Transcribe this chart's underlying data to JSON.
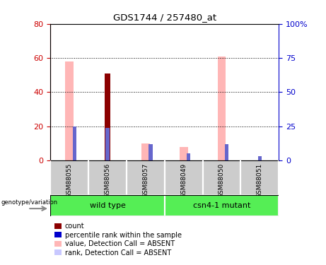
{
  "title": "GDS1744 / 257480_at",
  "samples": [
    "GSM88055",
    "GSM88056",
    "GSM88057",
    "GSM88049",
    "GSM88050",
    "GSM88051"
  ],
  "pink_values": [
    58,
    0,
    10,
    8,
    61,
    0
  ],
  "dark_red_values": [
    0,
    51,
    0,
    0,
    0,
    0
  ],
  "blue_rank_values": [
    25,
    24,
    12,
    5,
    12,
    3
  ],
  "pink_rank_values": [
    0,
    0,
    12,
    8,
    12,
    0
  ],
  "ylim_left": [
    0,
    80
  ],
  "ylim_right": [
    0,
    100
  ],
  "yticks_left": [
    0,
    20,
    40,
    60,
    80
  ],
  "yticks_right": [
    0,
    25,
    50,
    75,
    100
  ],
  "left_axis_color": "#cc0000",
  "right_axis_color": "#0000cc",
  "legend_items": [
    {
      "color": "#8B0000",
      "label": "count"
    },
    {
      "color": "#0000cc",
      "label": "percentile rank within the sample"
    },
    {
      "color": "#ffb6b6",
      "label": "value, Detection Call = ABSENT"
    },
    {
      "color": "#c8c8ff",
      "label": "rank, Detection Call = ABSENT"
    }
  ],
  "genotype_label": "genotype/variation",
  "background_color": "#ffffff",
  "pink_bar_width": 0.22,
  "dark_red_bar_width": 0.15,
  "blue_bar_width": 0.1,
  "green_color": "#55ee55"
}
